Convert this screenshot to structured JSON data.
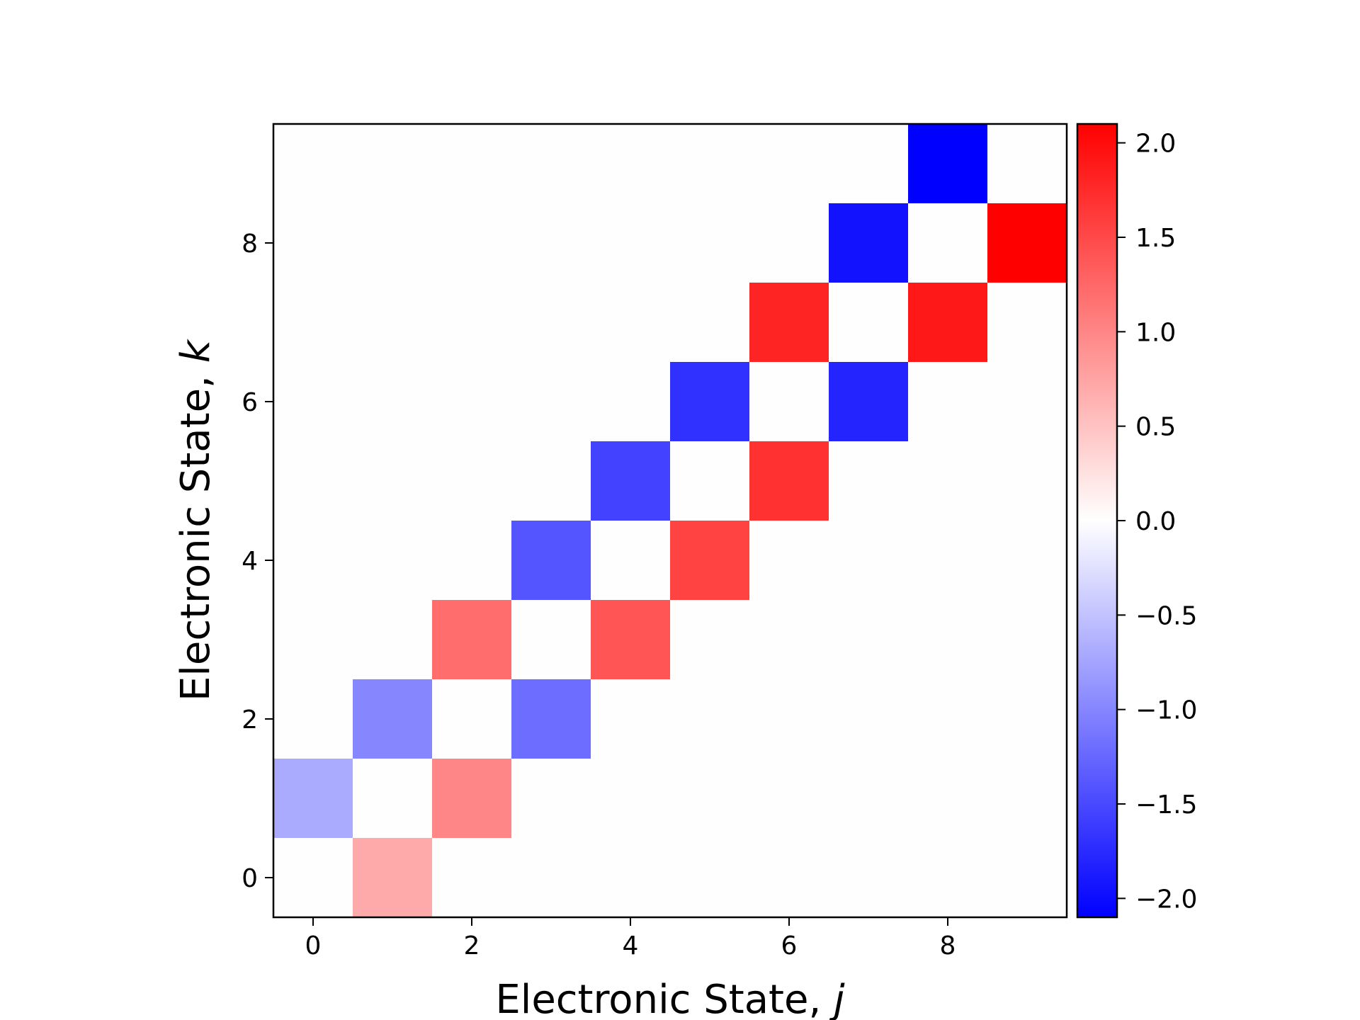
{
  "chart_data": {
    "type": "heatmap",
    "title": "",
    "xlabel": "Electronic State, ",
    "xlabel_var": "j",
    "ylabel": "Electronic State, ",
    "ylabel_var": "k",
    "x_range": [
      -0.5,
      9.5
    ],
    "y_range": [
      -0.5,
      9.5
    ],
    "x_ticks": [
      0,
      2,
      4,
      6,
      8
    ],
    "y_ticks": [
      0,
      2,
      4,
      6,
      8
    ],
    "x_tick_labels": [
      "0",
      "2",
      "4",
      "6",
      "8"
    ],
    "y_tick_labels": [
      "0",
      "2",
      "4",
      "6",
      "8"
    ],
    "colormap": "bwr",
    "color_range": [
      -2.1,
      2.1
    ],
    "colorbar_ticks": [
      2.0,
      1.5,
      1.0,
      0.5,
      0.0,
      -0.5,
      -1.0,
      -1.5,
      -2.0
    ],
    "colorbar_tick_labels": [
      "2.0",
      "1.5",
      "1.0",
      "0.5",
      "0.0",
      "−0.5",
      "−1.0",
      "−1.5",
      "−2.0"
    ],
    "cells": [
      {
        "j": 1,
        "k": 0,
        "value": 0.7
      },
      {
        "j": 0,
        "k": 1,
        "value": -0.7
      },
      {
        "j": 2,
        "k": 1,
        "value": 1.0
      },
      {
        "j": 1,
        "k": 2,
        "value": -1.0
      },
      {
        "j": 3,
        "k": 2,
        "value": -1.2
      },
      {
        "j": 2,
        "k": 3,
        "value": 1.2
      },
      {
        "j": 4,
        "k": 3,
        "value": 1.4
      },
      {
        "j": 3,
        "k": 4,
        "value": -1.4
      },
      {
        "j": 5,
        "k": 4,
        "value": 1.55
      },
      {
        "j": 4,
        "k": 5,
        "value": -1.55
      },
      {
        "j": 6,
        "k": 5,
        "value": 1.7
      },
      {
        "j": 5,
        "k": 6,
        "value": -1.7
      },
      {
        "j": 7,
        "k": 6,
        "value": -1.8
      },
      {
        "j": 6,
        "k": 7,
        "value": 1.8
      },
      {
        "j": 8,
        "k": 7,
        "value": 1.9
      },
      {
        "j": 7,
        "k": 8,
        "value": -1.95
      },
      {
        "j": 9,
        "k": 8,
        "value": 2.1
      },
      {
        "j": 8,
        "k": 9,
        "value": -2.1
      }
    ]
  }
}
